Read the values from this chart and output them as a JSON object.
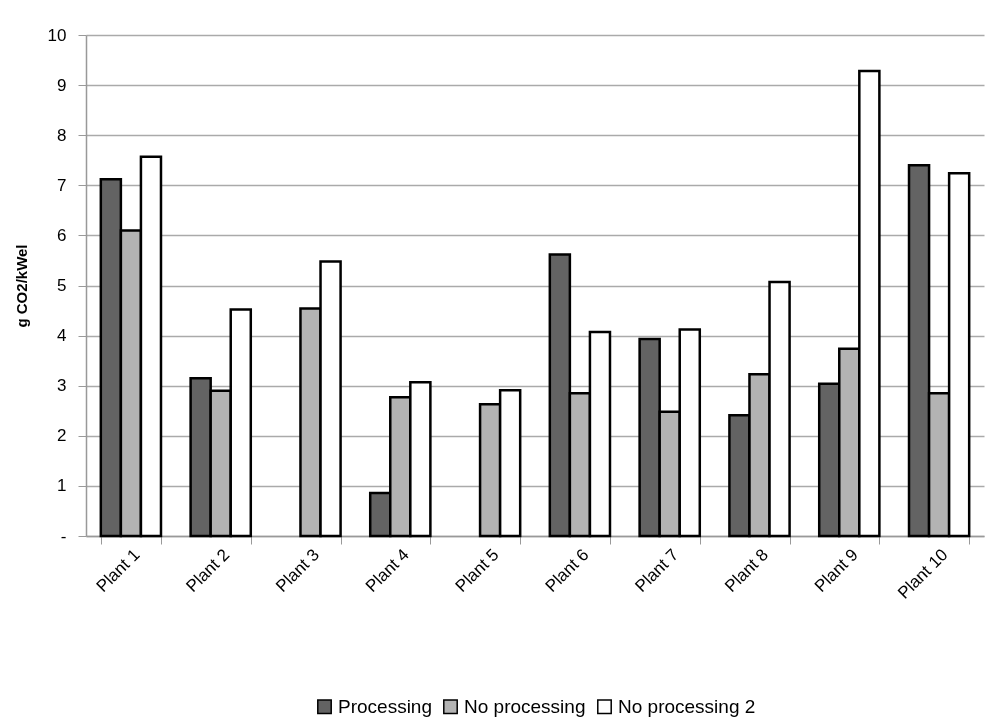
{
  "chart_data": {
    "type": "bar",
    "ylabel": "g CO2/kWel",
    "categories": [
      "Plant 1",
      "Plant 2",
      "Plant 3",
      "Plant 4",
      "Plant 5",
      "Plant 6",
      "Plant 7",
      "Plant 8",
      "Plant 9",
      "Plant 10"
    ],
    "series": [
      {
        "name": "Processing",
        "color": "#636363",
        "values": [
          7.12,
          3.15,
          null,
          0.86,
          null,
          5.62,
          3.93,
          2.41,
          3.04,
          7.4
        ]
      },
      {
        "name": "No processing",
        "color": "#b3b3b3",
        "values": [
          6.1,
          2.9,
          4.54,
          2.77,
          2.63,
          2.85,
          2.48,
          3.23,
          3.74,
          2.85
        ]
      },
      {
        "name": "No processing 2",
        "color": "#ffffff",
        "values": [
          7.57,
          4.52,
          5.48,
          3.07,
          2.91,
          4.07,
          4.12,
          5.07,
          9.28,
          7.24
        ]
      }
    ],
    "ylim": [
      0,
      10
    ],
    "yticks": [
      {
        "value": 0,
        "label": "-"
      },
      1,
      2,
      3,
      4,
      5,
      6,
      7,
      8,
      9,
      10
    ],
    "grid": "y",
    "legend": "bottom"
  }
}
